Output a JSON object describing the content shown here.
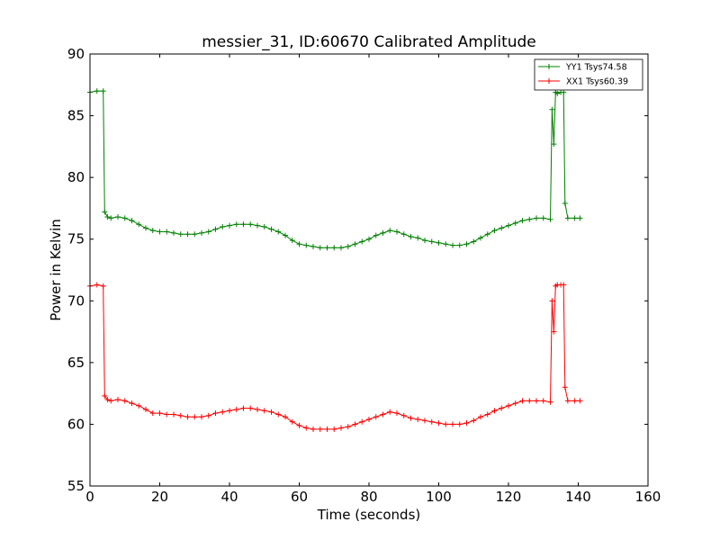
{
  "chart_data": {
    "type": "line",
    "title": "messier_31, ID:60670 Calibrated Amplitude",
    "xlabel": "Time (seconds)",
    "ylabel": "Power in Kelvin",
    "xlim": [
      0,
      160
    ],
    "ylim": [
      55,
      90
    ],
    "xticks": [
      "0",
      "20",
      "40",
      "60",
      "80",
      "100",
      "120",
      "140",
      "160"
    ],
    "yticks": [
      "55",
      "60",
      "65",
      "70",
      "75",
      "80",
      "85",
      "90"
    ],
    "grid": false,
    "legend_position": "top-right",
    "marker": "+",
    "series": [
      {
        "name": "YY1 Tsys74.58",
        "color": "#008000",
        "x": [
          0,
          2,
          3.8,
          4.2,
          5,
          6,
          8,
          10,
          12,
          14,
          16,
          18,
          20,
          22,
          24,
          26,
          28,
          30,
          32,
          34,
          36,
          38,
          40,
          42,
          44,
          46,
          48,
          50,
          52,
          54,
          56,
          58,
          60,
          62,
          64,
          66,
          68,
          70,
          72,
          74,
          76,
          78,
          80,
          82,
          84,
          86,
          88,
          90,
          92,
          94,
          96,
          98,
          100,
          102,
          104,
          106,
          108,
          110,
          112,
          114,
          116,
          118,
          120,
          122,
          124,
          126,
          128,
          130,
          132,
          132.5,
          133,
          133.5,
          134,
          135,
          135.8,
          136.2,
          137,
          139,
          140.5
        ],
        "y": [
          86.9,
          87.0,
          87.0,
          77.2,
          76.8,
          76.7,
          76.8,
          76.7,
          76.5,
          76.2,
          75.9,
          75.7,
          75.6,
          75.6,
          75.5,
          75.4,
          75.4,
          75.4,
          75.5,
          75.6,
          75.8,
          76.0,
          76.1,
          76.2,
          76.2,
          76.2,
          76.1,
          76.0,
          75.8,
          75.6,
          75.3,
          74.9,
          74.6,
          74.5,
          74.4,
          74.3,
          74.3,
          74.3,
          74.3,
          74.4,
          74.6,
          74.8,
          75.0,
          75.3,
          75.5,
          75.7,
          75.6,
          75.4,
          75.2,
          75.1,
          74.9,
          74.8,
          74.7,
          74.6,
          74.5,
          74.5,
          74.6,
          74.8,
          75.1,
          75.4,
          75.7,
          75.9,
          76.1,
          76.3,
          76.5,
          76.6,
          76.7,
          76.7,
          76.6,
          85.5,
          82.7,
          86.9,
          86.8,
          86.9,
          86.9,
          77.9,
          76.7,
          76.7,
          76.7
        ]
      },
      {
        "name": "XX1 Tsys60.39",
        "color": "#ff0000",
        "x": [
          0,
          2,
          3.8,
          4.2,
          5,
          6,
          8,
          10,
          12,
          14,
          16,
          18,
          20,
          22,
          24,
          26,
          28,
          30,
          32,
          34,
          36,
          38,
          40,
          42,
          44,
          46,
          48,
          50,
          52,
          54,
          56,
          58,
          60,
          62,
          64,
          66,
          68,
          70,
          72,
          74,
          76,
          78,
          80,
          82,
          84,
          86,
          88,
          90,
          92,
          94,
          96,
          98,
          100,
          102,
          104,
          106,
          108,
          110,
          112,
          114,
          116,
          118,
          120,
          122,
          124,
          126,
          128,
          130,
          132,
          132.5,
          133,
          133.5,
          134,
          135,
          135.8,
          136.2,
          137,
          139,
          140.5
        ],
        "y": [
          71.2,
          71.3,
          71.2,
          62.3,
          62.0,
          61.9,
          62.0,
          61.9,
          61.7,
          61.5,
          61.2,
          60.9,
          60.9,
          60.8,
          60.8,
          60.7,
          60.6,
          60.6,
          60.6,
          60.7,
          60.9,
          61.0,
          61.1,
          61.2,
          61.3,
          61.3,
          61.2,
          61.1,
          61.0,
          60.8,
          60.6,
          60.2,
          59.9,
          59.7,
          59.6,
          59.6,
          59.6,
          59.6,
          59.7,
          59.8,
          60.0,
          60.2,
          60.4,
          60.6,
          60.8,
          61.0,
          60.9,
          60.7,
          60.5,
          60.4,
          60.3,
          60.2,
          60.1,
          60.0,
          60.0,
          60.0,
          60.1,
          60.3,
          60.6,
          60.8,
          61.1,
          61.3,
          61.5,
          61.7,
          61.9,
          61.9,
          61.9,
          61.9,
          61.8,
          70.0,
          67.5,
          71.2,
          71.3,
          71.3,
          71.3,
          63.0,
          61.9,
          61.9,
          61.9
        ]
      }
    ]
  }
}
